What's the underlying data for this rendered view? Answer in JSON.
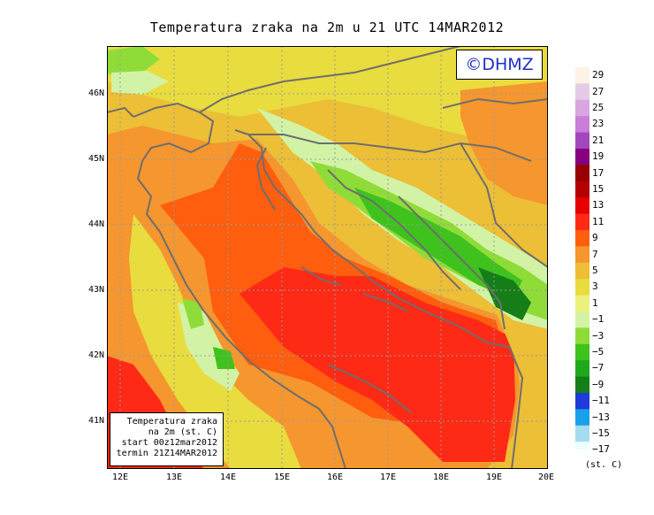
{
  "title": "Temperatura zraka na 2m u 21 UTC 14MAR2012",
  "copyright": "©DHMZ",
  "lat_labels": [
    "46N",
    "45N",
    "44N",
    "43N",
    "42N",
    "41N"
  ],
  "lon_labels": [
    "12E",
    "13E",
    "14E",
    "15E",
    "16E",
    "17E",
    "18E",
    "19E",
    "20E"
  ],
  "info_box": {
    "line1": "Temperatura zraka",
    "line2": "na 2m (st. C)",
    "line3": "start 00z12mar2012",
    "line4": "termin 21Z14MAR2012"
  },
  "colorbar": {
    "unit": "(st. C)",
    "labels": [
      "29",
      "27",
      "25",
      "23",
      "21",
      "19",
      "17",
      "15",
      "13",
      "11",
      "9",
      "7",
      "5",
      "3",
      "1",
      "−1",
      "−3",
      "−5",
      "−7",
      "−9",
      "−11",
      "−13",
      "−15",
      "−17"
    ],
    "colors": [
      "#fdf2e6",
      "#e6cbe6",
      "#d9a6e0",
      "#c97fd6",
      "#a347bf",
      "#86007f",
      "#960000",
      "#b40000",
      "#e60000",
      "#fe2a16",
      "#fe5e0e",
      "#f5962f",
      "#ecbf36",
      "#e9dc3e",
      "#ecf17c",
      "#d2f3a5",
      "#8fdc38",
      "#3fc21d",
      "#1fa81c",
      "#157e19",
      "#1f3bdc",
      "#18a0e8",
      "#a6dcef",
      "#eefefe"
    ]
  }
}
